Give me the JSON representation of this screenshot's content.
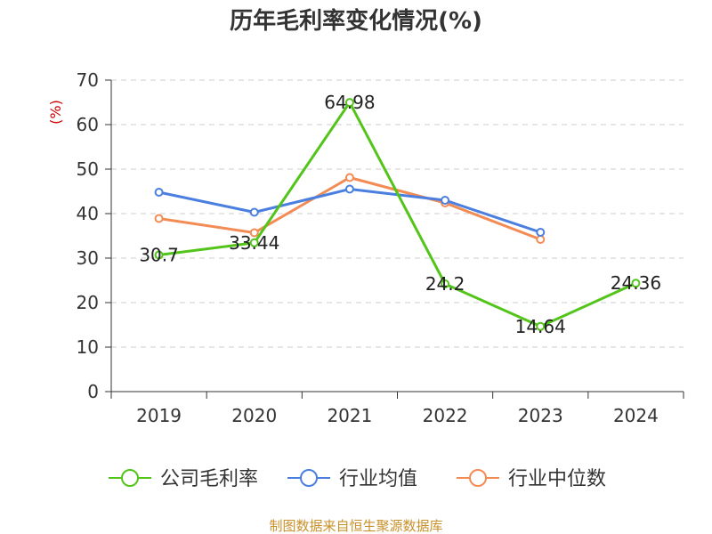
{
  "chart_data": {
    "type": "line",
    "title": "历年毛利率变化情况(%)",
    "ylabel": "(%)",
    "xlabel": "",
    "categories": [
      "2019",
      "2020",
      "2021",
      "2022",
      "2023",
      "2024"
    ],
    "ylim": [
      0,
      70
    ],
    "yticks": [
      0,
      10,
      20,
      30,
      40,
      50,
      60,
      70
    ],
    "grid": "horizontal-dashed",
    "legend_position": "bottom",
    "series": [
      {
        "name": "公司毛利率",
        "color": "#52c41a",
        "values": [
          30.7,
          33.44,
          64.98,
          24.2,
          14.64,
          24.36
        ],
        "labels": [
          "30.7",
          "33.44",
          "64.98",
          "24.2",
          "14.64",
          "24.36"
        ]
      },
      {
        "name": "行业均值",
        "color": "#4a7fe0",
        "values": [
          44.8,
          40.3,
          45.5,
          43.0,
          35.8,
          null
        ]
      },
      {
        "name": "行业中位数",
        "color": "#f28b54",
        "values": [
          38.9,
          35.7,
          48.1,
          42.4,
          34.2,
          null
        ]
      }
    ]
  },
  "source_text": "制图数据来自恒生聚源数据库",
  "colors": {
    "axis": "#333333",
    "grid": "#cccccc",
    "ylabel": "#cc0000",
    "source": "#c8902a"
  }
}
